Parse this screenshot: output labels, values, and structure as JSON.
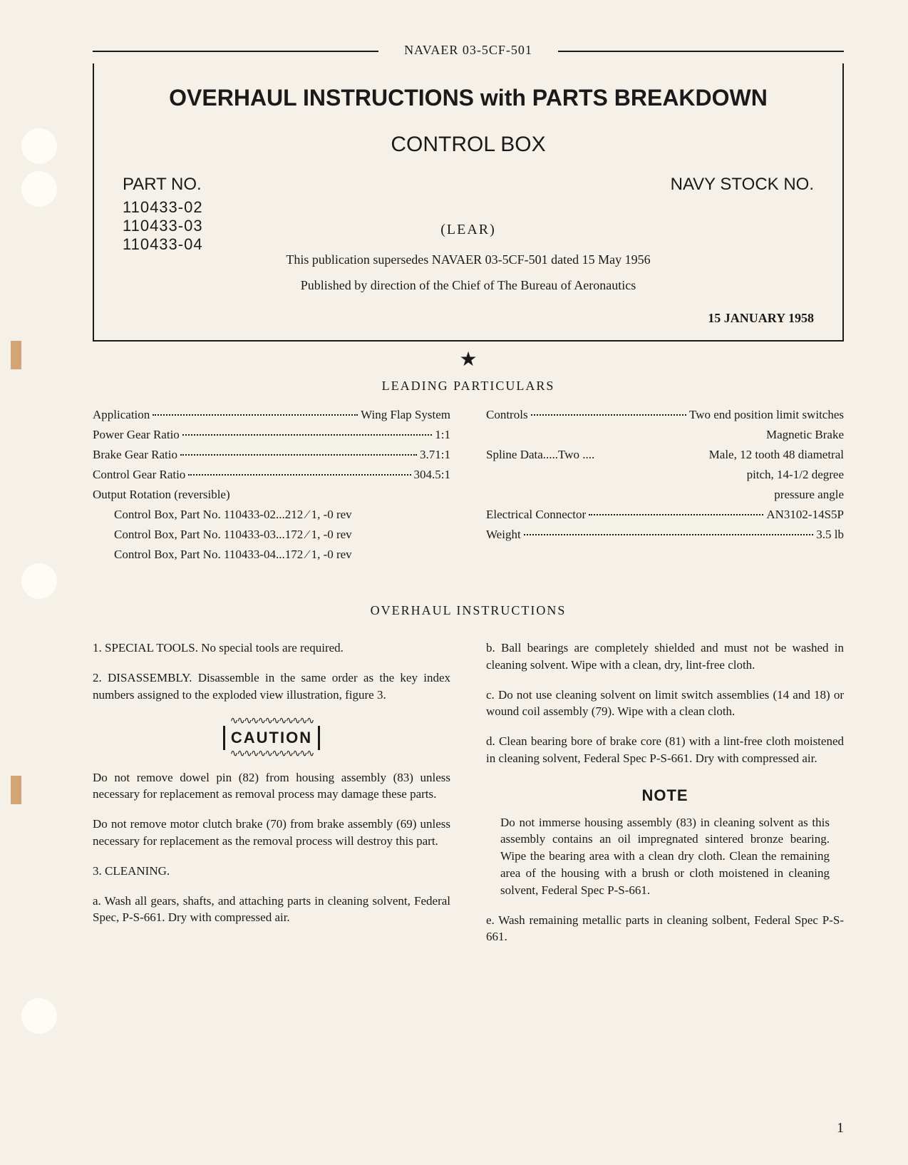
{
  "header": {
    "doc_number": "NAVAER 03-5CF-501"
  },
  "title_box": {
    "main_title": "OVERHAUL INSTRUCTIONS with PARTS BREAKDOWN",
    "subtitle": "CONTROL BOX",
    "part_no_label": "PART NO.",
    "part_numbers": [
      "110433-02",
      "110433-03",
      "110433-04"
    ],
    "navy_stock_label": "NAVY STOCK NO.",
    "manufacturer": "(LEAR)",
    "supersedes": "This publication supersedes NAVAER 03-5CF-501 dated 15 May 1956",
    "published_by": "Published by direction of the Chief of The Bureau of Aeronautics",
    "date": "15 JANUARY 1958"
  },
  "particulars": {
    "heading": "LEADING PARTICULARS",
    "left": [
      {
        "label": "Application",
        "value": "Wing Flap System"
      },
      {
        "label": "Power Gear Ratio",
        "value": "1:1"
      },
      {
        "label": "Brake Gear Ratio",
        "value": "3.71:1"
      },
      {
        "label": "Control Gear Ratio",
        "value": "304.5:1"
      }
    ],
    "output_rotation_label": "Output Rotation (reversible)",
    "output_rotation_items": [
      "Control Box, Part No. 110433-02...212 ⁄ 1, -0 rev",
      "Control Box, Part No. 110433-03...172 ⁄ 1, -0 rev",
      "Control Box, Part No. 110433-04...172 ⁄ 1, -0 rev"
    ],
    "right": {
      "controls_label": "Controls",
      "controls_value": "Two end position limit switches",
      "controls_sub": "Magnetic Brake",
      "spline_label": "Spline Data.....Two ....",
      "spline_value": "Male, 12 tooth 48 diametral",
      "spline_sub1": "pitch, 14-1/2 degree",
      "spline_sub2": "pressure angle",
      "connector_label": "Electrical Connector",
      "connector_value": "AN3102-14S5P",
      "weight_label": "Weight",
      "weight_value": "3.5 lb"
    }
  },
  "instructions": {
    "heading": "OVERHAUL INSTRUCTIONS",
    "left": {
      "para1": "1. SPECIAL TOOLS. No special tools are required.",
      "para2": "2. DISASSEMBLY. Disassemble in the same order as the key index numbers assigned to the exploded view illustration, figure 3.",
      "caution_label": "CAUTION",
      "caution_para1": "Do not remove dowel pin (82) from housing assembly (83) unless necessary for replacement as removal process may damage these parts.",
      "caution_para2": "Do not remove motor clutch brake (70) from brake assembly (69) unless necessary for replacement as the removal process will destroy this part.",
      "para3_heading": "3. CLEANING.",
      "para3a": "a. Wash all gears, shafts, and attaching parts in cleaning solvent, Federal Spec, P-S-661. Dry with compressed air."
    },
    "right": {
      "para_b": "b. Ball bearings are completely shielded and must not be washed in cleaning solvent. Wipe with a clean, dry, lint-free cloth.",
      "para_c": "c. Do not use cleaning solvent on limit switch assemblies (14 and 18) or wound coil assembly (79). Wipe with a clean cloth.",
      "para_d": "d. Clean bearing bore of brake core (81) with a lint-free cloth moistened in cleaning solvent, Federal Spec P-S-661. Dry with compressed air.",
      "note_label": "NOTE",
      "note_body": "Do not immerse housing assembly (83) in cleaning solvent as this assembly contains an oil impregnated sintered bronze bearing. Wipe the bearing area with a clean dry cloth. Clean the remaining area of the housing with a brush or cloth moistened in cleaning solvent, Federal Spec P-S-661.",
      "para_e": "e. Wash remaining metallic parts in cleaning solbent, Federal Spec P-S-661."
    }
  },
  "page_number": "1"
}
